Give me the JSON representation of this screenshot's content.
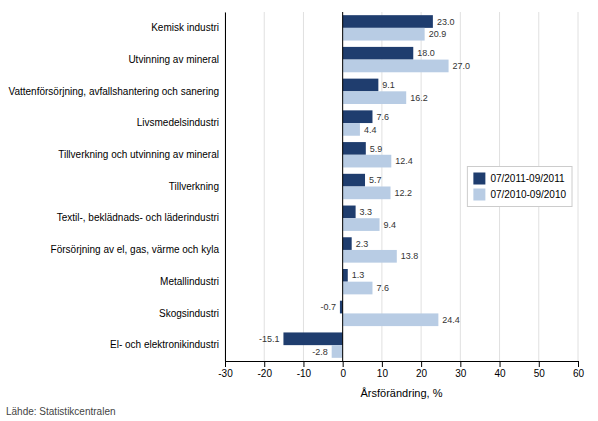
{
  "chart_data": {
    "type": "bar",
    "orientation": "horizontal",
    "categories": [
      "El- och elektronikindustri",
      "Skogsindustri",
      "Metallindustri",
      "Försörjning av el, gas, värme och kyla",
      "Textil-, beklädnads- och läderindustri",
      "Tillverkning",
      "Tillverkning och utvinning av mineral",
      "Livsmedelsindustri",
      "Vattenförsörjning, avfallshantering och sanering",
      "Utvinning av mineral",
      "Kemisk industri"
    ],
    "series": [
      {
        "name": "07/2011-09/2011",
        "color": "#1F3D6E",
        "values": [
          -15.1,
          -0.7,
          1.3,
          2.3,
          3.3,
          5.7,
          5.9,
          7.6,
          9.1,
          18.0,
          23.0
        ],
        "value_labels": [
          "-15.1",
          "-0.7",
          "1.3",
          "2.3",
          "3.3",
          "5.7",
          "5.9",
          "7.6",
          "9.1",
          "18.0",
          "23.0"
        ]
      },
      {
        "name": "07/2010-09/2010",
        "color": "#B8CCE4",
        "values": [
          -2.8,
          24.4,
          7.6,
          13.8,
          9.4,
          12.2,
          12.4,
          4.4,
          16.2,
          27.0,
          20.9
        ],
        "value_labels": [
          "-2.8",
          "24.4",
          "7.6",
          "13.8",
          "9.4",
          "12.2",
          "12.4",
          "4.4",
          "16.2",
          "27.0",
          "20.9"
        ]
      }
    ],
    "xlabel": "Årsförändring, %",
    "xlim": [
      -30,
      60
    ],
    "xticks": [
      -30,
      -20,
      -10,
      0,
      10,
      20,
      30,
      40,
      50,
      60
    ],
    "grid": true,
    "legend": "right",
    "data_labels": true,
    "annotations": [
      "Lähde: Statistikcentralen"
    ]
  }
}
